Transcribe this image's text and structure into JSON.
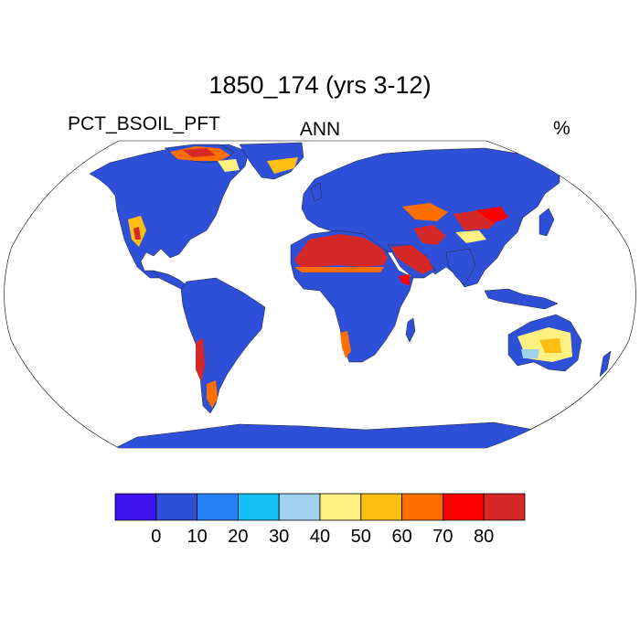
{
  "title": "1850_174 (yrs 3-12)",
  "left_string": "PCT_BSOIL_PFT",
  "center_string": "ANN",
  "right_string": "%",
  "colorbar": {
    "colors": [
      "#3f14f0",
      "#2e50d8",
      "#2480f5",
      "#14bff5",
      "#a0d2f0",
      "#fff080",
      "#ffbe14",
      "#ff6e00",
      "#ff0000",
      "#d72828"
    ],
    "tick_labels": [
      "0",
      "10",
      "20",
      "30",
      "40",
      "50",
      "60",
      "70",
      "80"
    ]
  },
  "map": {
    "projection": "Robinson",
    "ocean_color": "#ffffff",
    "land_default_color": "#2e50d8"
  }
}
